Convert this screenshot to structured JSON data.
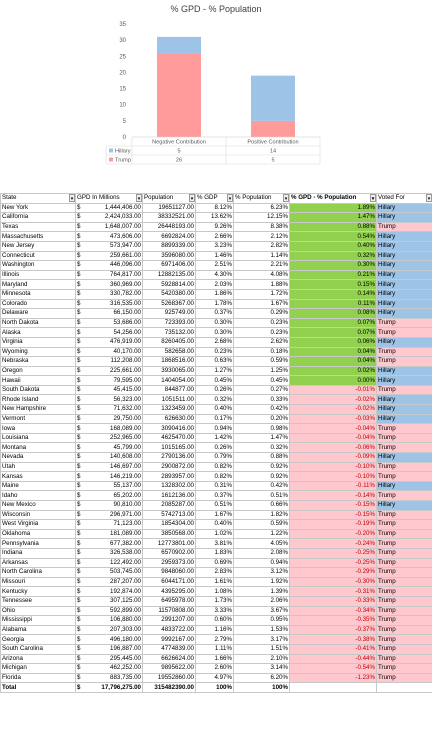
{
  "chart_data": {
    "type": "bar",
    "title": "% GPD - % Population",
    "categories": [
      "Negative Contribution",
      "Positive Contribution"
    ],
    "series": [
      {
        "name": "Hillary",
        "values": [
          5,
          14
        ],
        "color": "#9dc3e6"
      },
      {
        "name": "Trump",
        "values": [
          26,
          5
        ],
        "color": "#ff9b9b"
      }
    ],
    "stacked": true,
    "ylim": [
      0,
      35
    ],
    "yticks": [
      0,
      5,
      10,
      15,
      20,
      25,
      30,
      35
    ],
    "grid": false,
    "legend": "bottom data table"
  },
  "table": {
    "headers": [
      "State",
      "GPD In Millions",
      "Population",
      "% GDP",
      "% Population",
      "% GPD - % Population",
      "Voted For"
    ],
    "currency": "$",
    "rows": [
      [
        "New York",
        "1,444,406.00",
        "19651127.00",
        "8.12%",
        "6.23%",
        "1.89%",
        "Hillary"
      ],
      [
        "California",
        "2,424,033.00",
        "38332521.00",
        "13.62%",
        "12.15%",
        "1.47%",
        "Hillary"
      ],
      [
        "Texas",
        "1,648,007.00",
        "26448193.00",
        "9.26%",
        "8.38%",
        "0.88%",
        "Trump"
      ],
      [
        "Massachusetts",
        "473,606.00",
        "6692824.00",
        "2.66%",
        "2.12%",
        "0.54%",
        "Hillary"
      ],
      [
        "New Jersey",
        "573,947.00",
        "8899339.00",
        "3.23%",
        "2.82%",
        "0.40%",
        "Hillary"
      ],
      [
        "Connecticut",
        "259,661.00",
        "3596080.00",
        "1.46%",
        "1.14%",
        "0.32%",
        "Hillary"
      ],
      [
        "Washington",
        "446,096.00",
        "6971406.00",
        "2.51%",
        "2.21%",
        "0.30%",
        "Hillary"
      ],
      [
        "Illinois",
        "764,817.00",
        "12882135.00",
        "4.30%",
        "4.08%",
        "0.21%",
        "Hillary"
      ],
      [
        "Maryland",
        "360,969.00",
        "5928814.00",
        "2.03%",
        "1.88%",
        "0.15%",
        "Hillary"
      ],
      [
        "Minnesota",
        "330,782.00",
        "5420380.00",
        "1.86%",
        "1.72%",
        "0.14%",
        "Hillary"
      ],
      [
        "Colorado",
        "316,535.00",
        "5268367.00",
        "1.78%",
        "1.67%",
        "0.11%",
        "Hillary"
      ],
      [
        "Delaware",
        "66,150.00",
        "925749.00",
        "0.37%",
        "0.29%",
        "0.08%",
        "Hillary"
      ],
      [
        "North Dakota",
        "53,686.00",
        "723393.00",
        "0.30%",
        "0.23%",
        "0.07%",
        "Trump"
      ],
      [
        "Alaska",
        "54,256.00",
        "735132.00",
        "0.30%",
        "0.23%",
        "0.07%",
        "Trump"
      ],
      [
        "Virginia",
        "476,919.00",
        "8260405.00",
        "2.68%",
        "2.62%",
        "0.06%",
        "Hillary"
      ],
      [
        "Wyoming",
        "40,170.00",
        "582658.00",
        "0.23%",
        "0.18%",
        "0.04%",
        "Trump"
      ],
      [
        "Nebraska",
        "112,208.00",
        "1868516.00",
        "0.63%",
        "0.59%",
        "0.04%",
        "Trump"
      ],
      [
        "Oregon",
        "225,661.00",
        "3930065.00",
        "1.27%",
        "1.25%",
        "0.02%",
        "Hillary"
      ],
      [
        "Hawaii",
        "79,595.00",
        "1404054.00",
        "0.45%",
        "0.45%",
        "0.00%",
        "Hillary"
      ],
      [
        "South Dakota",
        "45,415.00",
        "844877.00",
        "0.26%",
        "0.27%",
        "-0.01%",
        "Trump"
      ],
      [
        "Rhode Island",
        "56,323.00",
        "1051511.00",
        "0.32%",
        "0.33%",
        "-0.02%",
        "Hillary"
      ],
      [
        "New Hampshire",
        "71,632.00",
        "1323459.00",
        "0.40%",
        "0.42%",
        "-0.02%",
        "Hillary"
      ],
      [
        "Vermont",
        "29,750.00",
        "626630.00",
        "0.17%",
        "0.20%",
        "-0.03%",
        "Hillary"
      ],
      [
        "Iowa",
        "168,089.00",
        "3090416.00",
        "0.94%",
        "0.98%",
        "-0.04%",
        "Trump"
      ],
      [
        "Louisiana",
        "252,965.00",
        "4625470.00",
        "1.42%",
        "1.47%",
        "-0.04%",
        "Trump"
      ],
      [
        "Montana",
        "45,799.00",
        "1015165.00",
        "0.26%",
        "0.32%",
        "-0.06%",
        "Trump"
      ],
      [
        "Nevada",
        "140,608.00",
        "2790136.00",
        "0.79%",
        "0.88%",
        "-0.09%",
        "Hillary"
      ],
      [
        "Utah",
        "146,697.00",
        "2900872.00",
        "0.82%",
        "0.92%",
        "-0.10%",
        "Trump"
      ],
      [
        "Kansas",
        "146,219.00",
        "2893957.00",
        "0.82%",
        "0.92%",
        "-0.10%",
        "Trump"
      ],
      [
        "Maine",
        "55,137.00",
        "1328302.00",
        "0.31%",
        "0.42%",
        "-0.11%",
        "Hillary"
      ],
      [
        "Idaho",
        "65,202.00",
        "1612136.00",
        "0.37%",
        "0.51%",
        "-0.14%",
        "Trump"
      ],
      [
        "New Mexico",
        "90,810.00",
        "2085287.00",
        "0.51%",
        "0.66%",
        "-0.15%",
        "Hillary"
      ],
      [
        "Wisconsin",
        "296,971.00",
        "5742713.00",
        "1.67%",
        "1.82%",
        "-0.15%",
        "Trump"
      ],
      [
        "West Virginia",
        "71,123.00",
        "1854304.00",
        "0.40%",
        "0.59%",
        "-0.19%",
        "Trump"
      ],
      [
        "Oklahoma",
        "181,089.00",
        "3850568.00",
        "1.02%",
        "1.22%",
        "-0.20%",
        "Trump"
      ],
      [
        "Pennsylvania",
        "677,382.00",
        "12773801.00",
        "3.81%",
        "4.05%",
        "-0.24%",
        "Trump"
      ],
      [
        "Indiana",
        "326,538.00",
        "6570902.00",
        "1.83%",
        "2.08%",
        "-0.25%",
        "Trump"
      ],
      [
        "Arkansas",
        "122,492.00",
        "2959373.00",
        "0.69%",
        "0.94%",
        "-0.25%",
        "Trump"
      ],
      [
        "North Carolina",
        "503,745.00",
        "9848060.00",
        "2.83%",
        "3.12%",
        "-0.29%",
        "Trump"
      ],
      [
        "Missouri",
        "287,207.00",
        "6044171.00",
        "1.61%",
        "1.92%",
        "-0.30%",
        "Trump"
      ],
      [
        "Kentucky",
        "192,874.00",
        "4395295.00",
        "1.08%",
        "1.39%",
        "-0.31%",
        "Trump"
      ],
      [
        "Tennessee",
        "307,125.00",
        "6495978.00",
        "1.73%",
        "2.06%",
        "-0.33%",
        "Trump"
      ],
      [
        "Ohio",
        "592,899.00",
        "11570808.00",
        "3.33%",
        "3.67%",
        "-0.34%",
        "Trump"
      ],
      [
        "Mississippi",
        "106,880.00",
        "2991207.00",
        "0.60%",
        "0.95%",
        "-0.35%",
        "Trump"
      ],
      [
        "Alabama",
        "207,303.00",
        "4833722.00",
        "1.16%",
        "1.53%",
        "-0.37%",
        "Trump"
      ],
      [
        "Georgia",
        "496,180.00",
        "9992167.00",
        "2.79%",
        "3.17%",
        "-0.38%",
        "Trump"
      ],
      [
        "South Carolina",
        "196,887.00",
        "4774839.00",
        "1.11%",
        "1.51%",
        "-0.41%",
        "Trump"
      ],
      [
        "Arizona",
        "295,445.00",
        "6626624.00",
        "1.66%",
        "2.10%",
        "-0.44%",
        "Trump"
      ],
      [
        "Michigan",
        "462,252.00",
        "9895622.00",
        "2.60%",
        "3.14%",
        "-0.54%",
        "Trump"
      ],
      [
        "Florida",
        "883,735.00",
        "19552860.00",
        "4.97%",
        "6.20%",
        "-1.23%",
        "Trump"
      ]
    ],
    "total": [
      "Total",
      "17,796,275.00",
      "315482390.00",
      "100%",
      "100%"
    ]
  }
}
